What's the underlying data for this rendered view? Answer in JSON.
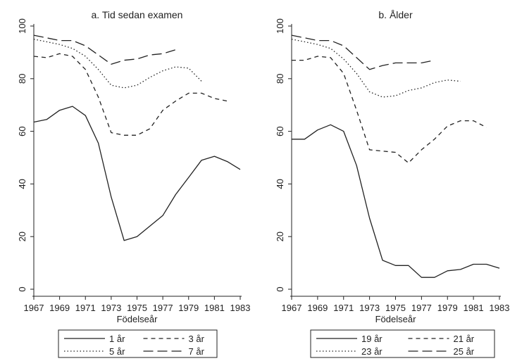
{
  "chart_data": [
    {
      "type": "line",
      "title": "a. Tid sedan examen",
      "xlabel": "Födelseår",
      "ylabel": "",
      "xlim": [
        1967,
        1983
      ],
      "ylim": [
        0,
        100
      ],
      "xticks": [
        1967,
        1969,
        1971,
        1973,
        1975,
        1977,
        1979,
        1981,
        1983
      ],
      "yticks": [
        0,
        20,
        40,
        60,
        80,
        100
      ],
      "grid": false,
      "legend_position": "bottom",
      "series": [
        {
          "name": "1 år",
          "style": "solid",
          "x": [
            1967,
            1968,
            1969,
            1970,
            1971,
            1972,
            1973,
            1974,
            1975,
            1976,
            1977,
            1978,
            1979,
            1980,
            1981,
            1982,
            1983
          ],
          "y": [
            63.5,
            64.5,
            68,
            69.5,
            66,
            55.5,
            35,
            18.5,
            20,
            24,
            28,
            36,
            42.5,
            49,
            50.5,
            48.5,
            45.5
          ]
        },
        {
          "name": "3 år",
          "style": "dash",
          "x": [
            1967,
            1968,
            1969,
            1970,
            1971,
            1972,
            1973,
            1974,
            1975,
            1976,
            1977,
            1978,
            1979,
            1980,
            1981,
            1982
          ],
          "y": [
            88.5,
            88,
            89.5,
            88.5,
            83.5,
            73,
            59.5,
            58.5,
            58.5,
            61,
            68,
            71.5,
            74.5,
            74.5,
            72.5,
            71.5
          ]
        },
        {
          "name": "5 år",
          "style": "dot",
          "x": [
            1967,
            1968,
            1969,
            1970,
            1971,
            1972,
            1973,
            1974,
            1975,
            1976,
            1977,
            1978,
            1979,
            1980
          ],
          "y": [
            95,
            94,
            93,
            91.5,
            88.5,
            83.5,
            77.5,
            76.5,
            77.5,
            80.5,
            83,
            84.5,
            84,
            79
          ]
        },
        {
          "name": "7 år",
          "style": "longdash",
          "x": [
            1967,
            1968,
            1969,
            1970,
            1971,
            1972,
            1973,
            1974,
            1975,
            1976,
            1977,
            1978
          ],
          "y": [
            96.5,
            95.5,
            94.5,
            94.5,
            92.5,
            89,
            85.5,
            87,
            87.5,
            89,
            89.5,
            91
          ]
        }
      ]
    },
    {
      "type": "line",
      "title": "b. Ålder",
      "xlabel": "Födelseår",
      "ylabel": "",
      "xlim": [
        1967,
        1983
      ],
      "ylim": [
        0,
        100
      ],
      "xticks": [
        1967,
        1969,
        1971,
        1973,
        1975,
        1977,
        1979,
        1981,
        1983
      ],
      "yticks": [
        0,
        20,
        40,
        60,
        80,
        100
      ],
      "grid": false,
      "legend_position": "bottom",
      "series": [
        {
          "name": "19 år",
          "style": "solid",
          "x": [
            1967,
            1968,
            1969,
            1970,
            1971,
            1972,
            1973,
            1974,
            1975,
            1976,
            1977,
            1978,
            1979,
            1980,
            1981,
            1982,
            1983
          ],
          "y": [
            57,
            57,
            60.5,
            62.5,
            60,
            47,
            27,
            11,
            9,
            9,
            4.5,
            4.5,
            7,
            7.5,
            9.5,
            9.5,
            8
          ]
        },
        {
          "name": "21 år",
          "style": "dash",
          "x": [
            1967,
            1968,
            1969,
            1970,
            1971,
            1972,
            1973,
            1974,
            1975,
            1976,
            1977,
            1978,
            1979,
            1980,
            1981,
            1982
          ],
          "y": [
            87,
            87,
            88.5,
            88,
            82,
            68,
            53,
            52.5,
            52,
            48,
            53,
            57,
            62,
            64,
            64,
            61.5
          ]
        },
        {
          "name": "23 år",
          "style": "dot",
          "x": [
            1967,
            1968,
            1969,
            1970,
            1971,
            1972,
            1973,
            1974,
            1975,
            1976,
            1977,
            1978,
            1979,
            1980
          ],
          "y": [
            95,
            94,
            93,
            91.5,
            87.5,
            82,
            75,
            73,
            73.5,
            75.5,
            76.5,
            78.5,
            79.5,
            79
          ]
        },
        {
          "name": "25 år",
          "style": "longdash",
          "x": [
            1967,
            1968,
            1969,
            1970,
            1971,
            1972,
            1973,
            1974,
            1975,
            1976,
            1977,
            1978
          ],
          "y": [
            96.5,
            95.5,
            94.5,
            94.5,
            92.5,
            88,
            83.5,
            85,
            86,
            86,
            86,
            87
          ]
        }
      ]
    }
  ],
  "dash_patterns": {
    "solid": "",
    "dash": "6,5",
    "dot": "1.5,3",
    "longdash": "14,6"
  }
}
